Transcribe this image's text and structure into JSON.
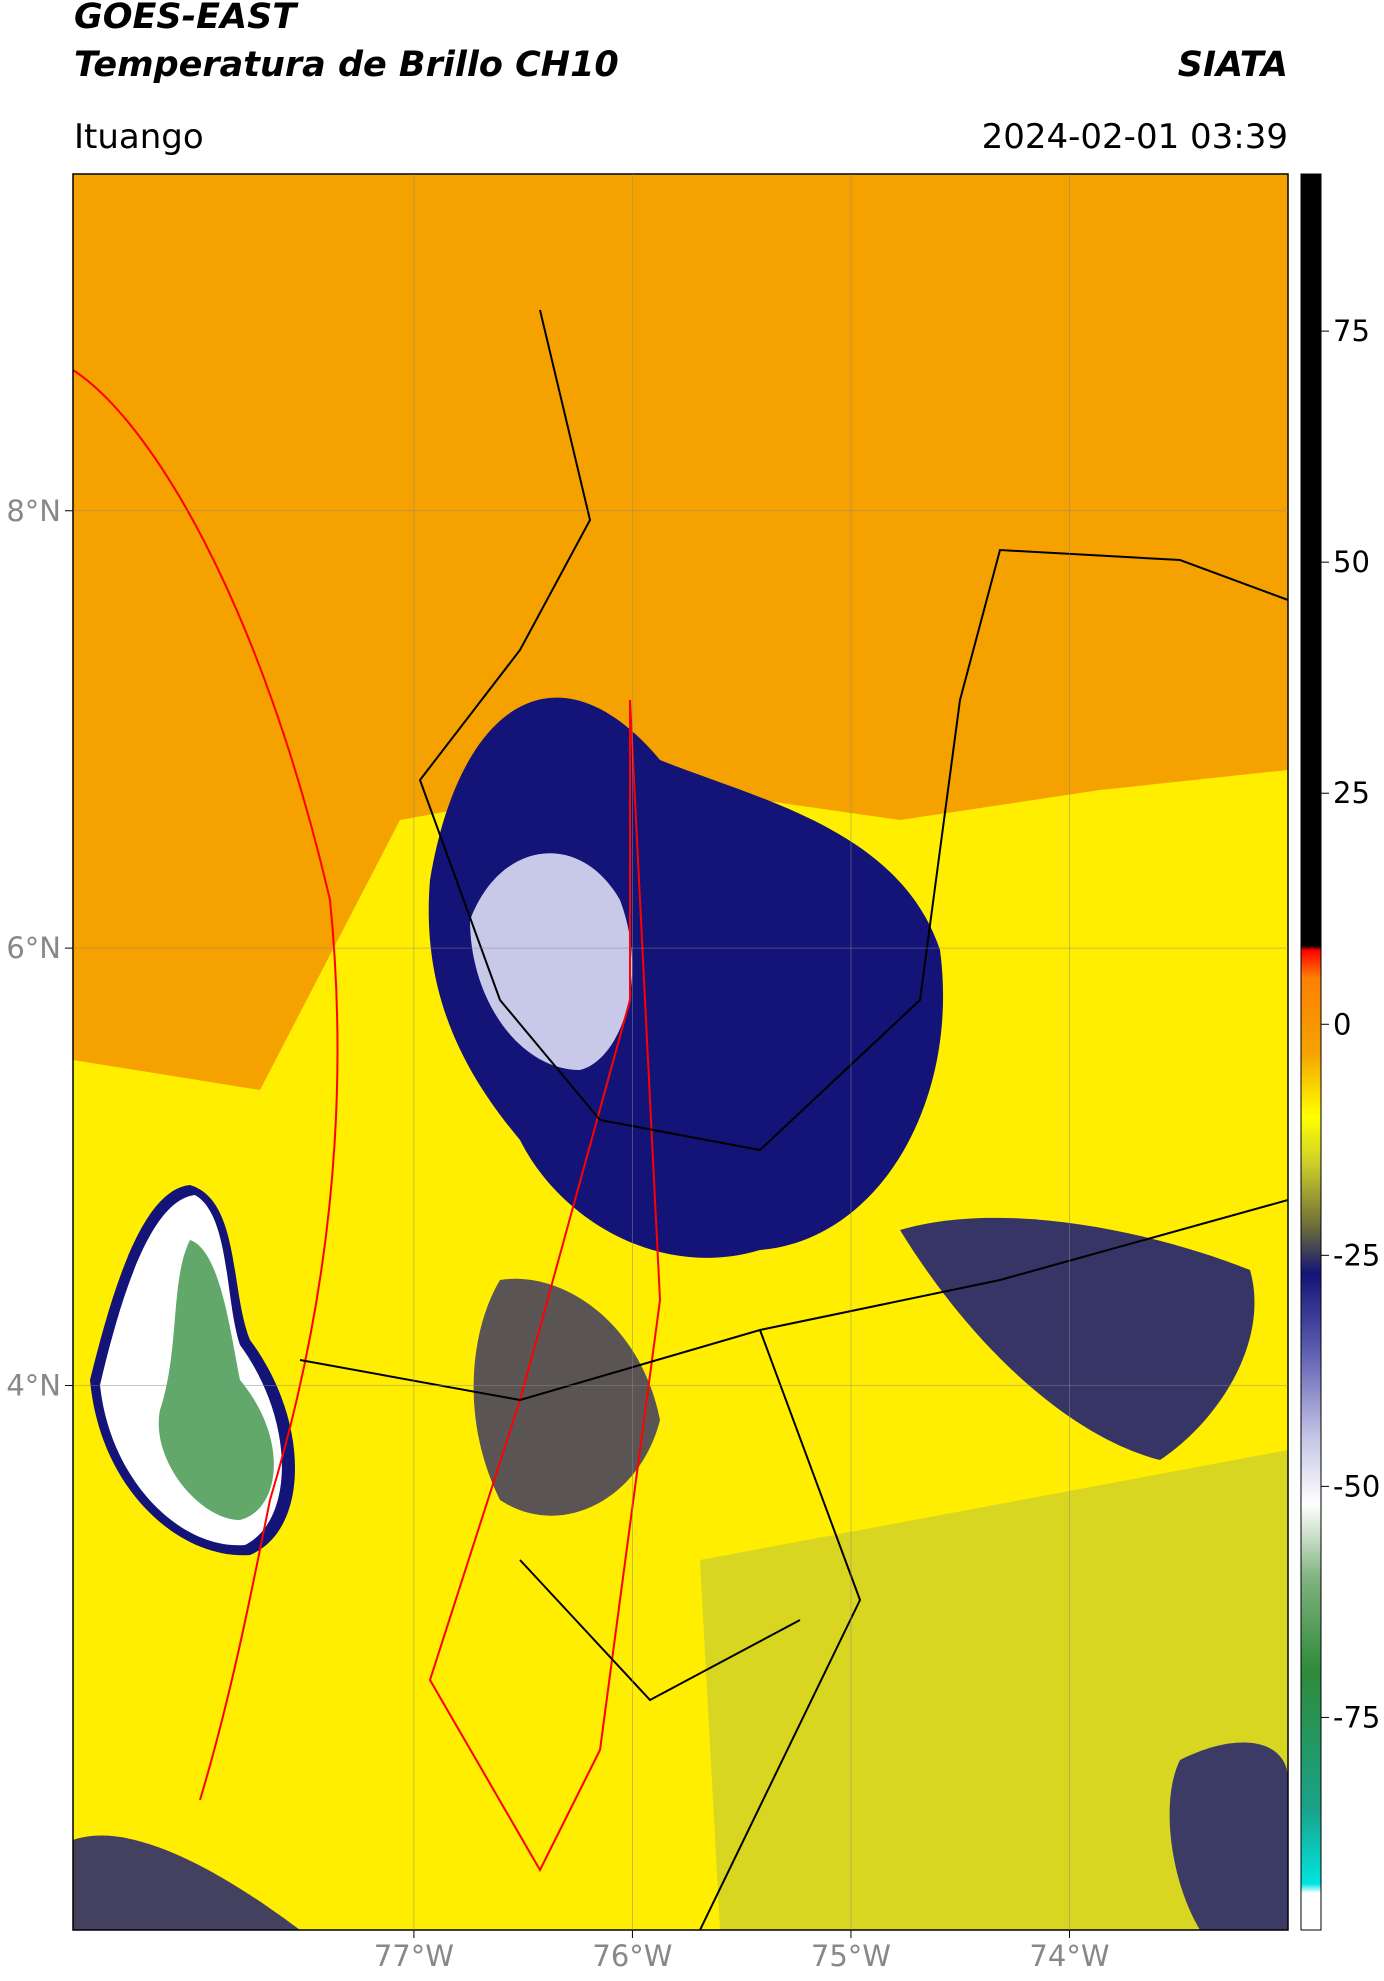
{
  "header": {
    "satellite": "GOES-EAST",
    "product": "Temperatura de Brillo CH10",
    "source": "SIATA",
    "location": "Ituango",
    "datetime": "2024-02-01 03:39"
  },
  "map": {
    "lonlim": [
      -78.56,
      -73.0
    ],
    "latlim": [
      1.51,
      9.54
    ],
    "xticks": [
      {
        "value": -77,
        "label": "77°W"
      },
      {
        "value": -76,
        "label": "76°W"
      },
      {
        "value": -75,
        "label": "75°W"
      },
      {
        "value": -74,
        "label": "74°W"
      }
    ],
    "yticks": [
      {
        "value": 4,
        "label": "4°N"
      },
      {
        "value": 6,
        "label": "6°N"
      },
      {
        "value": 8,
        "label": "8°N"
      }
    ],
    "grid": true
  },
  "colorbar": {
    "lim": [
      -98,
      92
    ],
    "ticks": [
      -75,
      -50,
      -25,
      0,
      25,
      50,
      75
    ],
    "stops": [
      {
        "value": -98,
        "color": "#ffffff"
      },
      {
        "value": -94,
        "color": "#ffffff"
      },
      {
        "value": -93,
        "color": "#00e5e0"
      },
      {
        "value": -85,
        "color": "#1aa38a"
      },
      {
        "value": -70,
        "color": "#2e8b3a"
      },
      {
        "value": -60,
        "color": "#7fb27f"
      },
      {
        "value": -52,
        "color": "#ffffff"
      },
      {
        "value": -45,
        "color": "#c8c8e8"
      },
      {
        "value": -35,
        "color": "#5a5aae"
      },
      {
        "value": -27,
        "color": "#141478"
      },
      {
        "value": -22,
        "color": "#6b6b3a"
      },
      {
        "value": -15,
        "color": "#cfcf2a"
      },
      {
        "value": -10,
        "color": "#ffff00"
      },
      {
        "value": -3,
        "color": "#f5a200"
      },
      {
        "value": 5,
        "color": "#ff8000"
      },
      {
        "value": 8,
        "color": "#ff0000"
      },
      {
        "value": 8.5,
        "color": "#000000"
      },
      {
        "value": 92,
        "color": "#000000"
      }
    ]
  }
}
